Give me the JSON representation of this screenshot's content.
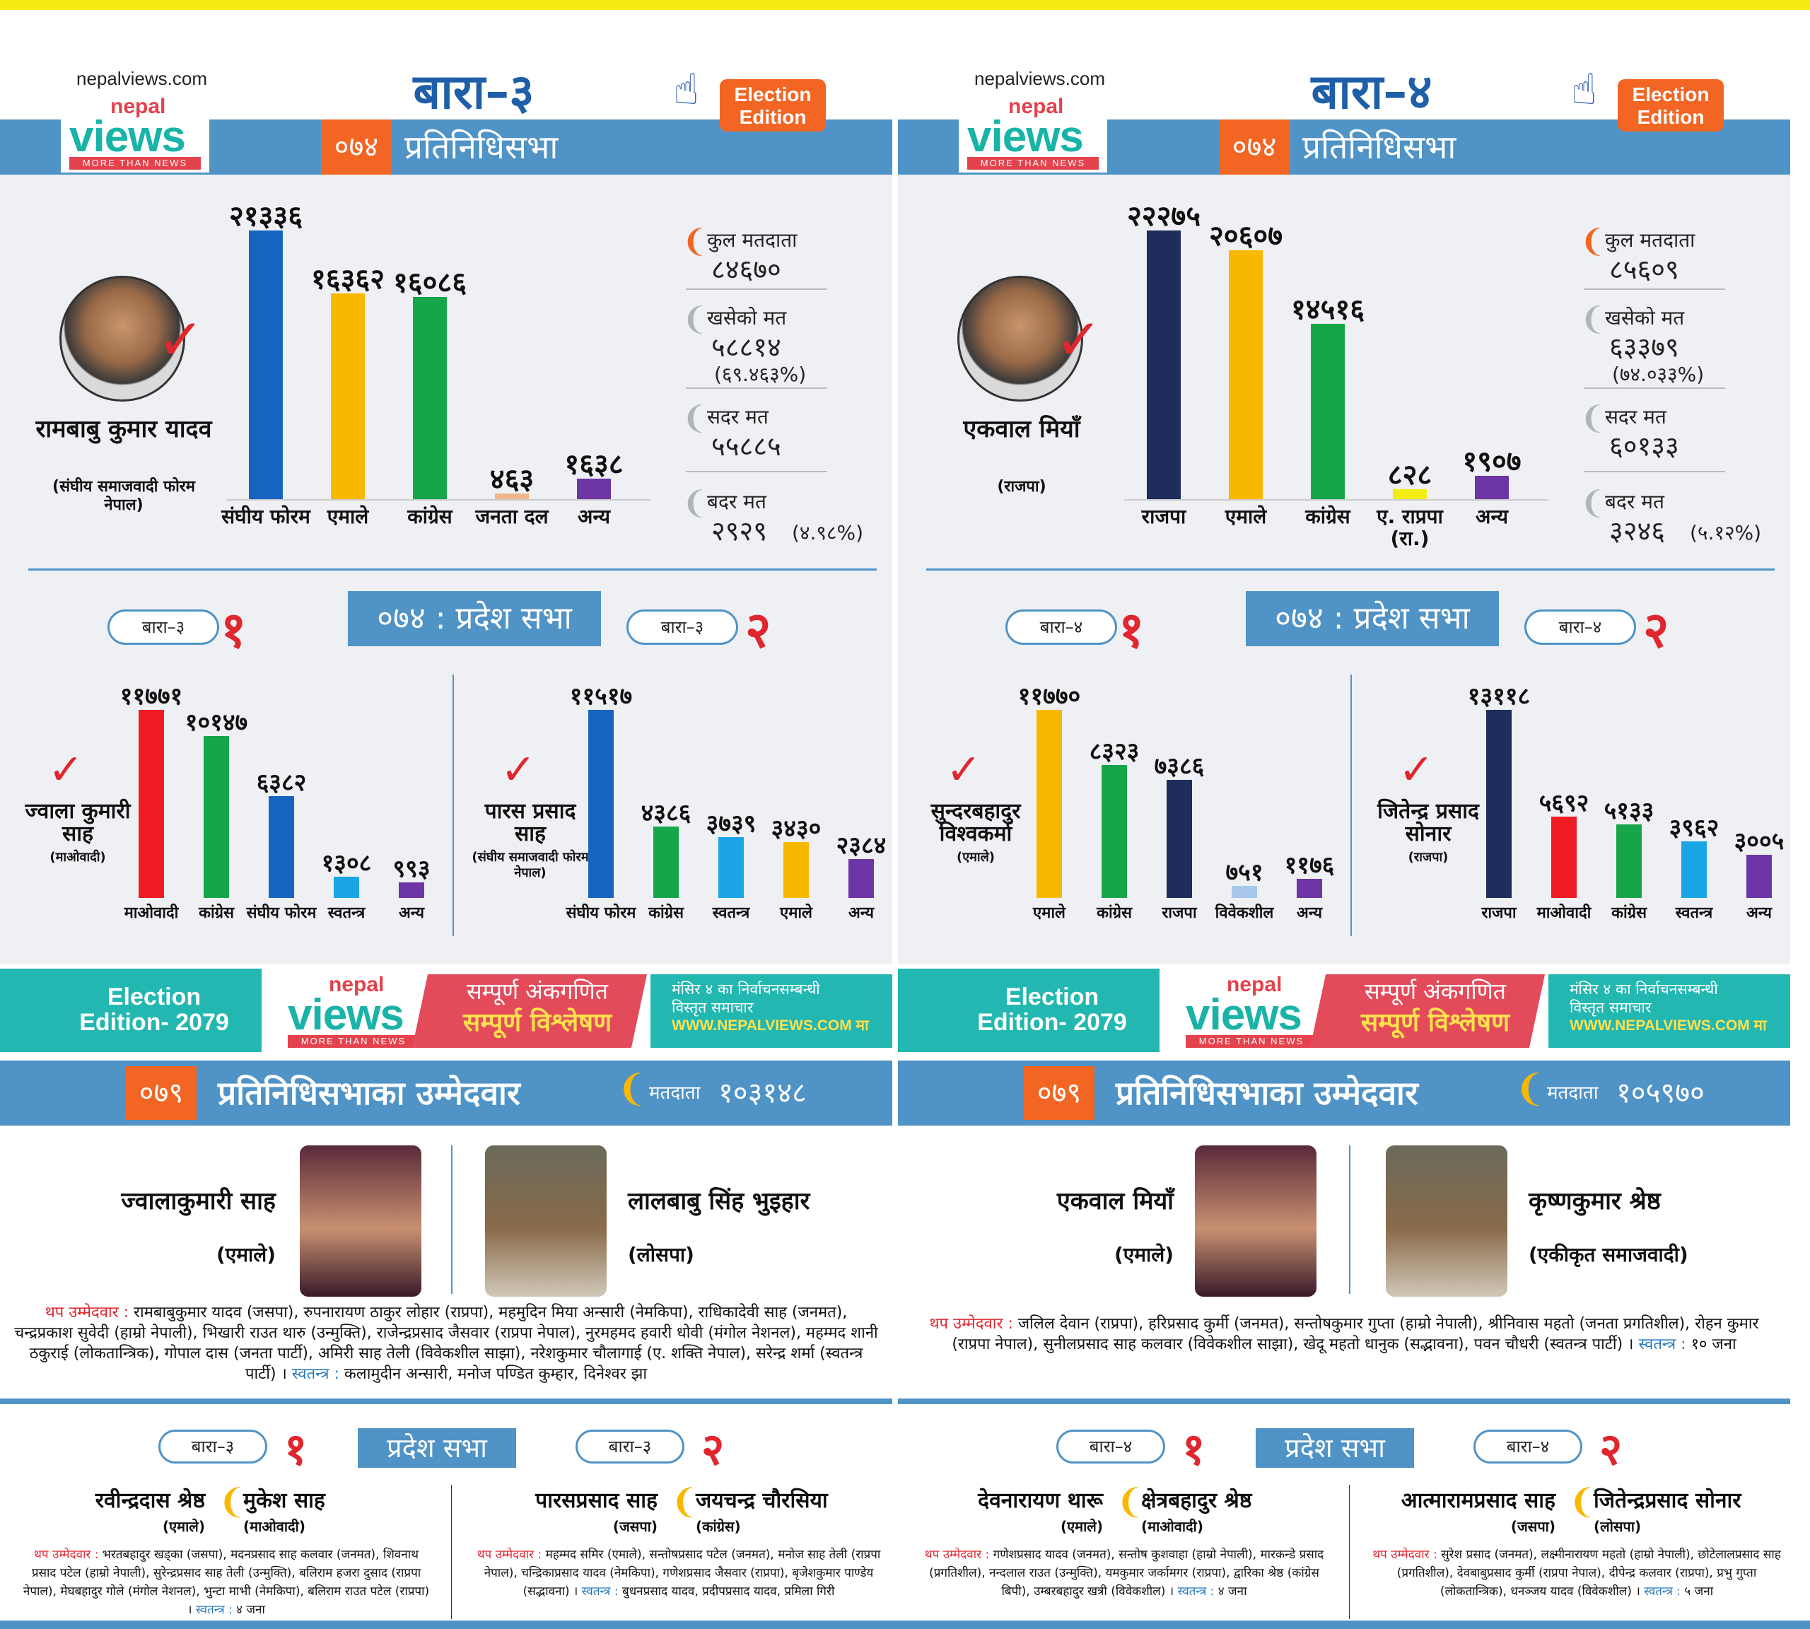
{
  "colors": {
    "blue": "#5093c6",
    "orange": "#f26522",
    "red": "#e0262f",
    "teal": "#23b7b1",
    "yellow": "#f5ea12"
  },
  "panels": [
    {
      "site": "nepalviews.com",
      "logo": {
        "nepal": "nepal",
        "views": "views",
        "tag": "MORE THAN NEWS"
      },
      "constituency": "बारा–३",
      "badge": "Election Edition",
      "year": "०७४",
      "house": "प्रतिनिधिसभा",
      "winner": {
        "name": "रामबाबु कुमार यादव",
        "party": "(संघीय समाजवादी फोरम नेपाल)"
      },
      "bars": [
        {
          "value": "२१३३६",
          "label": "संघीय फोरम",
          "color": "#1565c0",
          "num": 21336
        },
        {
          "value": "१६३६२",
          "label": "एमाले",
          "color": "#f9b800",
          "num": 16362
        },
        {
          "value": "१६०८६",
          "label": "कांग्रेस",
          "color": "#15a64a",
          "num": 16086
        },
        {
          "value": "४६३",
          "label": "जनता दल",
          "color": "#f2b48a",
          "num": 463
        },
        {
          "value": "१६३८",
          "label": "अन्य",
          "color": "#6e35a6",
          "num": 1638
        }
      ],
      "stats": [
        {
          "label": "कुल मतदाता",
          "value": "८४६७०",
          "sub": ""
        },
        {
          "label": "खसेको मत",
          "value": "५८८१४",
          "sub": "(६९.४६३%)"
        },
        {
          "label": "सदर मत",
          "value": "५५८८५",
          "sub": ""
        },
        {
          "label": "बदर मत",
          "value": "२९२९",
          "sub": "(४.९८%)"
        }
      ],
      "province": {
        "title": "०७४ : प्रदेश सभा",
        "left": {
          "pill": "बारा–३",
          "num": "१",
          "winner": "ज्वाला कुमारी साह",
          "party": "(माओवादी)",
          "bars": [
            {
              "value": "११७७१",
              "label": "माओवादी",
              "color": "#ef1c24",
              "num": 11771
            },
            {
              "value": "१०१४७",
              "label": "कांग्रेस",
              "color": "#15a64a",
              "num": 10147
            },
            {
              "value": "६३८२",
              "label": "संघीय फोरम",
              "color": "#1565c0",
              "num": 6382
            },
            {
              "value": "१३०८",
              "label": "स्वतन्त्र",
              "color": "#1aa5e6",
              "num": 1308
            },
            {
              "value": "९९३",
              "label": "अन्य",
              "color": "#6e35a6",
              "num": 993
            }
          ]
        },
        "right": {
          "pill": "बारा–३",
          "num": "२",
          "winner": "पारस प्रसाद साह",
          "party": "(संघीय समाजवादी फोरम नेपाल)",
          "bars": [
            {
              "value": "११५१७",
              "label": "संघीय फोरम",
              "color": "#1565c0",
              "num": 11517
            },
            {
              "value": "४३८६",
              "label": "कांग्रेस",
              "color": "#15a64a",
              "num": 4386
            },
            {
              "value": "३७३९",
              "label": "स्वतन्त्र",
              "color": "#1aa5e6",
              "num": 3739
            },
            {
              "value": "३४३०",
              "label": "एमाले",
              "color": "#f9b800",
              "num": 3430
            },
            {
              "value": "२३८४",
              "label": "अन्य",
              "color": "#6e35a6",
              "num": 2384
            }
          ]
        }
      },
      "banner": {
        "edition": "Election Edition- 2079",
        "red1": "सम्पूर्ण अंकगणित",
        "red2": "सम्पूर्ण विश्लेषण",
        "teal1": "मंसिर ४ का निर्वाचनसम्बन्धी",
        "teal2": "विस्तृत समाचार",
        "teal3": "WWW.NEPALVIEWS.COM मा"
      },
      "candidates": {
        "year": "०७९",
        "title": "प्रतिनिधिसभाका उम्मेदवार",
        "voters_label": "मतदाता",
        "voters": "१०३१४८",
        "c1": {
          "name": "ज्वालाकुमारी साह",
          "party": "(एमाले)"
        },
        "c2": {
          "name": "लालबाबु सिंह भुइहार",
          "party": "(लोसपा)"
        },
        "extra_label": "थप उम्मेदवार :",
        "extra": "रामबाबुकुमार यादव (जसपा), रुपनारायण ठाकुर लोहार (राप्रपा), महमुदिन मिया अन्सारी (नेमकिपा), राधिकादेवी साह (जनमत), चन्द्रप्रकाश सुवेदी (हाम्रो नेपाली), भिखारी राउत थारु (उन्मुक्ति), राजेन्द्रप्रसाद जैसवार (राप्रपा नेपाल), नुरमहमद हवारी धोवी (मंगोल नेशनल), महम्मद शानी ठकुराई (लोकतान्त्रिक), गोपाल दास (जनता पार्टी), अमिरी साह तेली (विवेकशील साझा), नरेशकुमार चौलागाई (ए. शक्ति नेपाल), सरेन्द्र शर्मा (स्वतन्त्र पार्टी) ।",
        "ind_label": "स्वतन्त्र :",
        "ind": "कलामुदीन अन्सारी, मनोज पण्डित कुम्हार, दिनेश्वर झा"
      },
      "prov79": {
        "title": "प्रदेश सभा",
        "left": {
          "pill": "बारा–३",
          "num": "१",
          "c1": "रवीन्द्रदास श्रेष्ठ",
          "p1": "(एमाले)",
          "c2": "मुकेश साह",
          "p2": "(माओवादी)",
          "extra": "भरतबहादुर खड्का (जसपा), मदनप्रसाद साह कलवार (जनमत), शिवनाथ प्रसाद पटेल (हाम्रो नेपाली), सुरेन्द्रप्रसाद साह तेली (उन्मुक्ति), बलिराम हजरा दुसाद (राप्रपा नेपाल), मेघबहादुर गोले (मंगोल नेशनल), भुन्टा माभी (नेमकिपा), बलिराम राउत पटेल (राप्रपा) ।",
          "ind": "४ जना"
        },
        "right": {
          "pill": "बारा–३",
          "num": "२",
          "c1": "पारसप्रसाद साह",
          "p1": "(जसपा)",
          "c2": "जयचन्द्र चौरसिया",
          "p2": "(कांग्रेस)",
          "extra": "महम्मद समिर (एमाले), सन्तोषप्रसाद पटेल (जनमत), मनोज साह तेली (राप्रपा नेपाल), चन्द्रिकाप्रसाद यादव (नेमकिपा), गणेशप्रसाद जैसवार (राप्रपा), बृजेशकुमार पाण्डेय (सद्भावना) ।",
          "ind": "बुधनप्रसाद यादव, प्रदीपप्रसाद यादव, प्रमिला गिरी"
        }
      }
    },
    {
      "site": "nepalviews.com",
      "logo": {
        "nepal": "nepal",
        "views": "views",
        "tag": "MORE THAN NEWS"
      },
      "constituency": "बारा–४",
      "badge": "Election Edition",
      "year": "०७४",
      "house": "प्रतिनिधिसभा",
      "winner": {
        "name": "एकवाल मियाँ",
        "party": "(राजपा)"
      },
      "bars": [
        {
          "value": "२२२७५",
          "label": "राजपा",
          "color": "#1f2d5c",
          "num": 22275
        },
        {
          "value": "२०६०७",
          "label": "एमाले",
          "color": "#f9b800",
          "num": 20607
        },
        {
          "value": "१४५१६",
          "label": "कांग्रेस",
          "color": "#15a64a",
          "num": 14516
        },
        {
          "value": "८२८",
          "label": "ए. राप्रपा (रा.)",
          "color": "#f2ee12",
          "num": 828
        },
        {
          "value": "१९०७",
          "label": "अन्य",
          "color": "#6e35a6",
          "num": 1907
        }
      ],
      "stats": [
        {
          "label": "कुल मतदाता",
          "value": "८५६०९",
          "sub": ""
        },
        {
          "label": "खसेको मत",
          "value": "६३३७९",
          "sub": "(७४.०३३%)"
        },
        {
          "label": "सदर मत",
          "value": "६०१३३",
          "sub": ""
        },
        {
          "label": "बदर मत",
          "value": "३२४६",
          "sub": "(५.१२%)"
        }
      ],
      "province": {
        "title": "०७४ : प्रदेश सभा",
        "left": {
          "pill": "बारा–४",
          "num": "१",
          "winner": "सुन्दरबहादुर विश्वकर्मा",
          "party": "(एमाले)",
          "bars": [
            {
              "value": "११७७०",
              "label": "एमाले",
              "color": "#f9b800",
              "num": 11770
            },
            {
              "value": "८३२३",
              "label": "कांग्रेस",
              "color": "#15a64a",
              "num": 8323
            },
            {
              "value": "७३८६",
              "label": "राजपा",
              "color": "#1f2d5c",
              "num": 7386
            },
            {
              "value": "७५१",
              "label": "विवेकशील",
              "color": "#a8c8ea",
              "num": 751
            },
            {
              "value": "११७६",
              "label": "अन्य",
              "color": "#6e35a6",
              "num": 1176
            }
          ]
        },
        "right": {
          "pill": "बारा–४",
          "num": "२",
          "winner": "जितेन्द्र प्रसाद सोनार",
          "party": "(राजपा)",
          "bars": [
            {
              "value": "१३११८",
              "label": "राजपा",
              "color": "#1f2d5c",
              "num": 13118
            },
            {
              "value": "५६९२",
              "label": "माओवादी",
              "color": "#ef1c24",
              "num": 5692
            },
            {
              "value": "५१३३",
              "label": "कांग्रेस",
              "color": "#15a64a",
              "num": 5133
            },
            {
              "value": "३९६२",
              "label": "स्वतन्त्र",
              "color": "#1aa5e6",
              "num": 3962
            },
            {
              "value": "३००५",
              "label": "अन्य",
              "color": "#6e35a6",
              "num": 3005
            }
          ]
        }
      },
      "banner": {
        "edition": "Election Edition- 2079",
        "red1": "सम्पूर्ण अंकगणित",
        "red2": "सम्पूर्ण विश्लेषण",
        "teal1": "मंसिर ४ का निर्वाचनसम्बन्धी",
        "teal2": "विस्तृत समाचार",
        "teal3": "WWW.NEPALVIEWS.COM मा"
      },
      "candidates": {
        "year": "०७९",
        "title": "प्रतिनिधिसभाका उम्मेदवार",
        "voters_label": "मतदाता",
        "voters": "१०५९७०",
        "c1": {
          "name": "एकवाल मियाँ",
          "party": "(एमाले)"
        },
        "c2": {
          "name": "कृष्णकुमार श्रेष्ठ",
          "party": "(एकीकृत समाजवादी)"
        },
        "extra_label": "थप उम्मेदवार :",
        "extra": "जलिल देवान (राप्रपा), हरिप्रसाद कुर्मी (जनमत), सन्तोषकुमार गुप्ता (हाम्रो नेपाली), श्रीनिवास महतो (जनता प्रगतिशील), रोहन कुमार (राप्रपा नेपाल), सुनीलप्रसाद साह कलवार (विवेकशील साझा), खेदू महतो धानुक (सद्भावना), पवन चौधरी (स्वतन्त्र पार्टी) ।",
        "ind_label": "स्वतन्त्र :",
        "ind": "१० जना"
      },
      "prov79": {
        "title": "प्रदेश सभा",
        "left": {
          "pill": "बारा–४",
          "num": "१",
          "c1": "देवनारायण थारू",
          "p1": "(एमाले)",
          "c2": "क्षेत्रबहादुर श्रेष्ठ",
          "p2": "(माओवादी)",
          "extra": "गणेशप्रसाद यादव (जनमत), सन्तोष कुशवाहा (हाम्रो नेपाली), मारकन्डे प्रसाद (प्रगतिशील), नन्दलाल राउत (उन्मुक्ति), यमकुमार जर्कामगर (राप्रपा), द्वारिका श्रेष्ठ (कांग्रेस बिपी), उम्बरबहादुर खत्री (विवेकशील) ।",
          "ind": "४ जना"
        },
        "right": {
          "pill": "बारा–४",
          "num": "२",
          "c1": "आत्मारामप्रसाद साह",
          "p1": "(जसपा)",
          "c2": "जितेन्द्रप्रसाद सोनार",
          "p2": "(लोसपा)",
          "extra": "सुरेश प्रसाद (जनमत), लक्ष्मीनारायण महतो (हाम्रो नेपाली), छोटेलालप्रसाद साह (प्रगतिशील), देवबाबुप्रसाद कुर्मी (राप्रपा नेपाल), दीपेन्द्र कलवार (राप्रपा), प्रभु गुप्ता (लोकतान्त्रिक), धनञ्जय यादव (विवेकशील) ।",
          "ind": "५ जना"
        }
      }
    }
  ]
}
